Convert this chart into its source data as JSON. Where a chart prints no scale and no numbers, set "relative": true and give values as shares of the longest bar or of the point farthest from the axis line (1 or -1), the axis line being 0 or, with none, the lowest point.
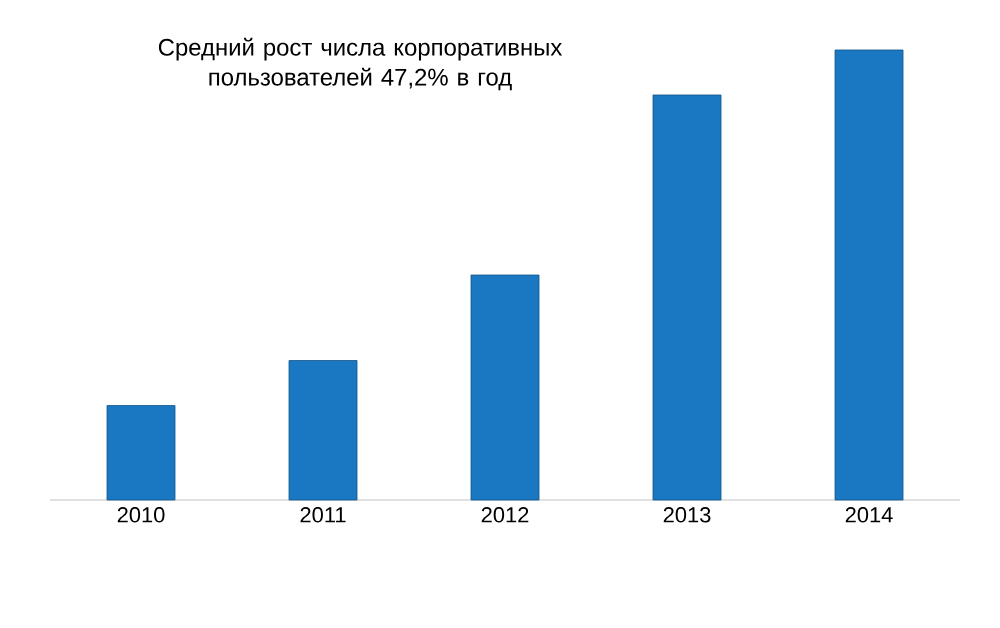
{
  "chart_data": {
    "type": "bar",
    "title": "Средний рост числа корпоративных пользователей 47,2% в год",
    "categories": [
      "2010",
      "2011",
      "2012",
      "2013",
      "2014"
    ],
    "values": [
      0.21,
      0.31,
      0.5,
      0.9,
      1
    ],
    "color": "#1a78c2",
    "relative": true
  }
}
